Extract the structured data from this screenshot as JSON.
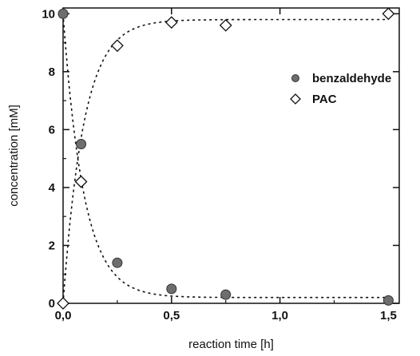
{
  "chart_data": {
    "type": "scatter",
    "xlabel": "reaction time [h]",
    "ylabel": "concentration [mM]",
    "xlim": [
      0,
      1.55
    ],
    "ylim": [
      0,
      10.2
    ],
    "xticks": [
      0,
      0.5,
      1.0,
      1.5
    ],
    "xtick_labels": [
      "0,0",
      "0,5",
      "1,0",
      "1,5"
    ],
    "yticks": [
      0,
      2,
      4,
      6,
      8,
      10
    ],
    "ytick_labels": [
      "0",
      "2",
      "4",
      "6",
      "8",
      "10"
    ],
    "grid": false,
    "legend_position": "right",
    "series": [
      {
        "name": "benzaldehyde",
        "marker": "filled-circle",
        "color": "#6e6e6e",
        "x": [
          0,
          0.083,
          0.25,
          0.5,
          0.75,
          1.5
        ],
        "y": [
          10.0,
          5.5,
          1.4,
          0.5,
          0.3,
          0.1
        ],
        "fit": {
          "style": "dashed",
          "form": "exponential-decay",
          "start": 10.0,
          "plateau": 0.2,
          "rate": 10.5
        }
      },
      {
        "name": "PAC",
        "marker": "open-diamond",
        "color": "#111111",
        "x": [
          0,
          0.083,
          0.25,
          0.5,
          0.75,
          1.5
        ],
        "y": [
          0.0,
          4.2,
          8.9,
          9.7,
          9.6,
          10.0
        ],
        "fit": {
          "style": "dashed",
          "form": "exponential-rise",
          "start": 0.0,
          "plateau": 9.8,
          "rate": 10.5
        }
      }
    ]
  }
}
